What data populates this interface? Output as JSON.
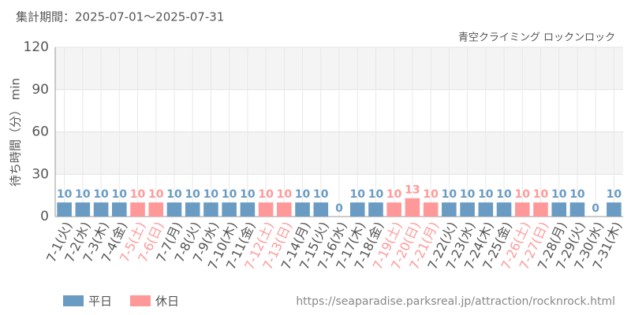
{
  "chart_data": {
    "type": "bar",
    "title": "集計期間：2025-07-01～2025-07-31",
    "subtitle": "青空クライミング ロックンロック",
    "y_label": "待ち時間（分） min",
    "source": "https://seaparadise.parksreal.jp/attraction/rocknrock.html",
    "categories": [
      "7-1(火)",
      "7-2(水)",
      "7-3(木)",
      "7-4(金)",
      "7-5(土)",
      "7-6(日)",
      "7-7(月)",
      "7-8(火)",
      "7-9(水)",
      "7-10(木)",
      "7-11(金)",
      "7-12(土)",
      "7-13(日)",
      "7-14(月)",
      "7-15(火)",
      "7-16(水)",
      "7-17(木)",
      "7-18(金)",
      "7-19(土)",
      "7-20(日)",
      "7-21(月)",
      "7-22(火)",
      "7-23(水)",
      "7-24(木)",
      "7-25(金)",
      "7-26(土)",
      "7-27(日)",
      "7-28(月)",
      "7-29(火)",
      "7-30(水)",
      "7-31(木)"
    ],
    "series": [
      {
        "name": "平日",
        "color": "#6a9bc3",
        "values": [
          10,
          10,
          10,
          10,
          null,
          null,
          10,
          10,
          10,
          10,
          10,
          null,
          null,
          10,
          10,
          0,
          10,
          10,
          null,
          null,
          null,
          10,
          10,
          10,
          10,
          null,
          null,
          10,
          10,
          0,
          10
        ]
      },
      {
        "name": "休日",
        "color": "#ff9999",
        "values": [
          null,
          null,
          null,
          null,
          10,
          10,
          null,
          null,
          null,
          null,
          null,
          10,
          10,
          null,
          null,
          null,
          null,
          null,
          10,
          13,
          10,
          null,
          null,
          null,
          null,
          10,
          10,
          null,
          null,
          null,
          null
        ]
      }
    ],
    "ylim": [
      0,
      120
    ],
    "yticks": [
      0,
      30,
      60,
      90,
      120
    ],
    "grid": true
  }
}
